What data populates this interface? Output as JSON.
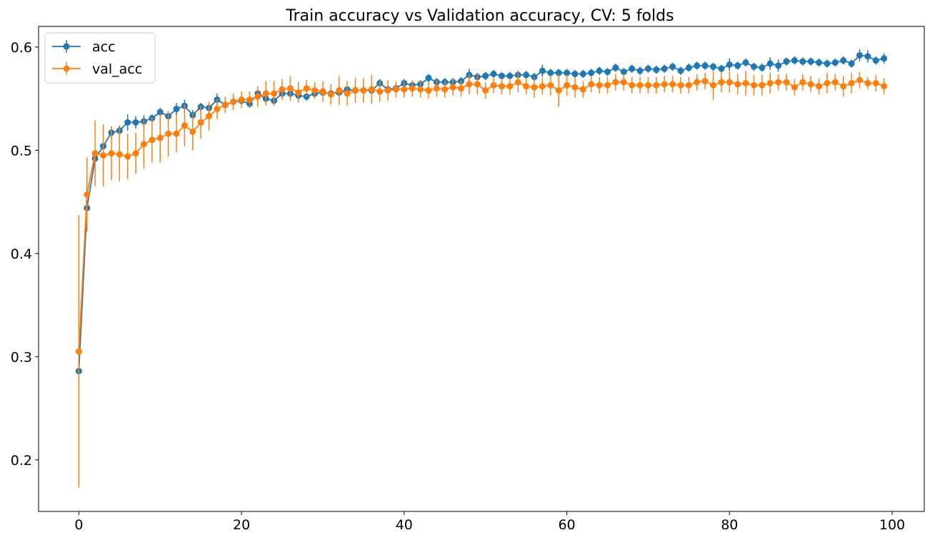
{
  "chart_data": {
    "type": "line",
    "title": "Train accuracy vs Validation accuracy, CV: 5 folds",
    "xlabel": "",
    "ylabel": "",
    "xlim": [
      -4.95,
      103.95
    ],
    "ylim": [
      0.15,
      0.62
    ],
    "xticks": [
      0,
      20,
      40,
      60,
      80,
      100
    ],
    "yticks": [
      0.2,
      0.3,
      0.4,
      0.5,
      0.6
    ],
    "xtick_labels": [
      "0",
      "20",
      "40",
      "60",
      "80",
      "100"
    ],
    "ytick_labels": [
      "0.2",
      "0.3",
      "0.4",
      "0.5",
      "0.6"
    ],
    "grid": false,
    "legend_position": "upper left",
    "x": [
      0,
      1,
      2,
      3,
      4,
      5,
      6,
      7,
      8,
      9,
      10,
      11,
      12,
      13,
      14,
      15,
      16,
      17,
      18,
      19,
      20,
      21,
      22,
      23,
      24,
      25,
      26,
      27,
      28,
      29,
      30,
      31,
      32,
      33,
      34,
      35,
      36,
      37,
      38,
      39,
      40,
      41,
      42,
      43,
      44,
      45,
      46,
      47,
      48,
      49,
      50,
      51,
      52,
      53,
      54,
      55,
      56,
      57,
      58,
      59,
      60,
      61,
      62,
      63,
      64,
      65,
      66,
      67,
      68,
      69,
      70,
      71,
      72,
      73,
      74,
      75,
      76,
      77,
      78,
      79,
      80,
      81,
      82,
      83,
      84,
      85,
      86,
      87,
      88,
      89,
      90,
      91,
      92,
      93,
      94,
      95,
      96,
      97,
      98,
      99
    ],
    "series": [
      {
        "name": "acc",
        "color": "#1f77b4",
        "values": [
          0.286,
          0.444,
          0.492,
          0.504,
          0.517,
          0.519,
          0.527,
          0.527,
          0.528,
          0.531,
          0.537,
          0.533,
          0.54,
          0.543,
          0.534,
          0.542,
          0.541,
          0.549,
          0.544,
          0.547,
          0.548,
          0.545,
          0.555,
          0.55,
          0.548,
          0.555,
          0.555,
          0.553,
          0.552,
          0.555,
          0.556,
          0.555,
          0.556,
          0.559,
          0.558,
          0.558,
          0.558,
          0.565,
          0.559,
          0.56,
          0.565,
          0.563,
          0.564,
          0.57,
          0.566,
          0.566,
          0.566,
          0.567,
          0.573,
          0.571,
          0.572,
          0.574,
          0.572,
          0.572,
          0.573,
          0.573,
          0.571,
          0.577,
          0.575,
          0.575,
          0.575,
          0.574,
          0.574,
          0.575,
          0.577,
          0.576,
          0.58,
          0.576,
          0.579,
          0.577,
          0.579,
          0.578,
          0.579,
          0.581,
          0.577,
          0.58,
          0.582,
          0.582,
          0.581,
          0.579,
          0.583,
          0.582,
          0.585,
          0.581,
          0.58,
          0.584,
          0.582,
          0.586,
          0.587,
          0.586,
          0.586,
          0.585,
          0.584,
          0.585,
          0.587,
          0.584,
          0.592,
          0.591,
          0.587,
          0.589
        ],
        "errors": [
          0.003,
          0.004,
          0.004,
          0.003,
          0.006,
          0.005,
          0.008,
          0.006,
          0.006,
          0.004,
          0.004,
          0.005,
          0.006,
          0.006,
          0.005,
          0.004,
          0.005,
          0.006,
          0.004,
          0.004,
          0.004,
          0.004,
          0.004,
          0.004,
          0.004,
          0.005,
          0.004,
          0.004,
          0.004,
          0.004,
          0.004,
          0.004,
          0.004,
          0.004,
          0.004,
          0.004,
          0.004,
          0.004,
          0.004,
          0.004,
          0.004,
          0.004,
          0.004,
          0.004,
          0.004,
          0.004,
          0.004,
          0.004,
          0.006,
          0.004,
          0.004,
          0.004,
          0.004,
          0.004,
          0.004,
          0.004,
          0.004,
          0.006,
          0.004,
          0.004,
          0.004,
          0.004,
          0.004,
          0.004,
          0.004,
          0.004,
          0.004,
          0.004,
          0.004,
          0.004,
          0.004,
          0.004,
          0.004,
          0.004,
          0.004,
          0.004,
          0.004,
          0.004,
          0.004,
          0.004,
          0.006,
          0.004,
          0.004,
          0.004,
          0.004,
          0.006,
          0.006,
          0.004,
          0.004,
          0.004,
          0.004,
          0.004,
          0.004,
          0.004,
          0.004,
          0.004,
          0.006,
          0.006,
          0.004,
          0.005
        ]
      },
      {
        "name": "val_acc",
        "color": "#ff7f0e",
        "values": [
          0.305,
          0.457,
          0.497,
          0.495,
          0.497,
          0.496,
          0.494,
          0.497,
          0.506,
          0.51,
          0.512,
          0.516,
          0.516,
          0.524,
          0.518,
          0.527,
          0.533,
          0.54,
          0.544,
          0.547,
          0.549,
          0.549,
          0.552,
          0.555,
          0.555,
          0.559,
          0.56,
          0.556,
          0.56,
          0.558,
          0.557,
          0.554,
          0.558,
          0.555,
          0.558,
          0.558,
          0.559,
          0.557,
          0.558,
          0.559,
          0.559,
          0.56,
          0.559,
          0.558,
          0.56,
          0.559,
          0.561,
          0.56,
          0.564,
          0.564,
          0.558,
          0.563,
          0.562,
          0.562,
          0.566,
          0.562,
          0.561,
          0.562,
          0.563,
          0.558,
          0.563,
          0.561,
          0.559,
          0.564,
          0.563,
          0.563,
          0.566,
          0.566,
          0.563,
          0.563,
          0.563,
          0.563,
          0.564,
          0.564,
          0.563,
          0.563,
          0.566,
          0.567,
          0.563,
          0.566,
          0.566,
          0.564,
          0.565,
          0.563,
          0.563,
          0.565,
          0.566,
          0.566,
          0.561,
          0.566,
          0.564,
          0.562,
          0.565,
          0.566,
          0.562,
          0.565,
          0.568,
          0.565,
          0.565,
          0.562
        ],
        "errors": [
          0.132,
          0.036,
          0.032,
          0.03,
          0.026,
          0.026,
          0.022,
          0.02,
          0.024,
          0.022,
          0.024,
          0.022,
          0.018,
          0.02,
          0.018,
          0.016,
          0.014,
          0.01,
          0.008,
          0.008,
          0.008,
          0.008,
          0.01,
          0.012,
          0.012,
          0.01,
          0.012,
          0.01,
          0.008,
          0.008,
          0.01,
          0.01,
          0.014,
          0.012,
          0.012,
          0.012,
          0.014,
          0.01,
          0.01,
          0.008,
          0.008,
          0.008,
          0.008,
          0.008,
          0.008,
          0.008,
          0.008,
          0.008,
          0.01,
          0.01,
          0.008,
          0.008,
          0.008,
          0.008,
          0.01,
          0.008,
          0.01,
          0.008,
          0.01,
          0.016,
          0.01,
          0.01,
          0.008,
          0.008,
          0.008,
          0.008,
          0.008,
          0.008,
          0.008,
          0.008,
          0.008,
          0.008,
          0.008,
          0.008,
          0.008,
          0.008,
          0.008,
          0.008,
          0.014,
          0.01,
          0.01,
          0.01,
          0.012,
          0.01,
          0.01,
          0.01,
          0.008,
          0.008,
          0.008,
          0.008,
          0.008,
          0.008,
          0.01,
          0.008,
          0.01,
          0.01,
          0.008,
          0.006,
          0.008,
          0.008
        ]
      }
    ]
  }
}
